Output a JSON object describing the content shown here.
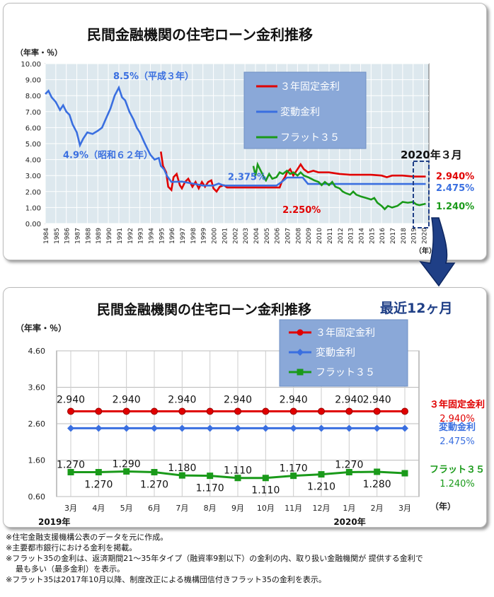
{
  "charts": [
    {
      "title": "民間金融機関の住宅ローン金利推移",
      "ylabel": "（年率・％）",
      "xlabel": "（年）",
      "date_label": "2020年３月",
      "ylim": [
        0,
        10
      ],
      "yticks": [
        "0.00",
        "1.00",
        "2.00",
        "3.00",
        "4.00",
        "5.00",
        "6.00",
        "7.00",
        "8.00",
        "9.00",
        "10.00"
      ],
      "xticks": [
        "1984",
        "1985",
        "1986",
        "1987",
        "1988",
        "1989",
        "1990",
        "1991",
        "1992",
        "1993",
        "1994",
        "1995",
        "1996",
        "1997",
        "1998",
        "1999",
        "2000",
        "2001",
        "2002",
        "2003",
        "2004",
        "2005",
        "2006",
        "2007",
        "2008",
        "2009",
        "2010",
        "2011",
        "2012",
        "2013",
        "2014",
        "2015",
        "2016",
        "2017",
        "2018",
        "2019",
        "2020"
      ],
      "annotations": [
        {
          "text": "8.5%（平成３年）",
          "x": 1991.0,
          "y": 8.5,
          "color": "#3a6fe0"
        },
        {
          "text": "4.9%（昭和６２年）",
          "x": 1987.3,
          "y": 4.9,
          "color": "#3a6fe0"
        },
        {
          "text": "2.375%",
          "x": 2001.5,
          "y": 2.375,
          "color": "#3a6fe0"
        },
        {
          "text": "2.250%",
          "x": 2006.3,
          "y": 2.25,
          "color": "#e00000"
        }
      ],
      "end_labels": [
        "2.940%",
        "2.475%",
        "1.240%"
      ],
      "series": [
        {
          "name": "３年固定金利",
          "color": "#e00000",
          "points": [
            [
              1995.0,
              4.5
            ],
            [
              1995.2,
              3.6
            ],
            [
              1995.5,
              3.2
            ],
            [
              1995.7,
              2.3
            ],
            [
              1996.0,
              2.1
            ],
            [
              1996.2,
              2.9
            ],
            [
              1996.5,
              3.1
            ],
            [
              1996.8,
              2.4
            ],
            [
              1997.0,
              2.2
            ],
            [
              1997.3,
              2.6
            ],
            [
              1997.6,
              2.8
            ],
            [
              1998.0,
              2.3
            ],
            [
              1998.3,
              2.6
            ],
            [
              1998.6,
              2.2
            ],
            [
              1998.9,
              2.6
            ],
            [
              1999.2,
              2.3
            ],
            [
              1999.5,
              2.6
            ],
            [
              1999.8,
              2.7
            ],
            [
              2000.0,
              2.2
            ],
            [
              2000.3,
              2.0
            ],
            [
              2000.6,
              2.3
            ],
            [
              2001.0,
              2.4
            ],
            [
              2001.3,
              2.25
            ],
            [
              2002.0,
              2.25
            ],
            [
              2003.0,
              2.25
            ],
            [
              2004.0,
              2.25
            ],
            [
              2005.0,
              2.25
            ],
            [
              2006.0,
              2.25
            ],
            [
              2006.3,
              2.25
            ],
            [
              2006.5,
              2.6
            ],
            [
              2006.8,
              2.9
            ],
            [
              2007.0,
              3.2
            ],
            [
              2007.3,
              3.4
            ],
            [
              2007.6,
              3.0
            ],
            [
              2008.0,
              3.4
            ],
            [
              2008.3,
              3.7
            ],
            [
              2008.6,
              3.4
            ],
            [
              2009.0,
              3.2
            ],
            [
              2009.5,
              3.3
            ],
            [
              2010.0,
              3.2
            ],
            [
              2011.0,
              3.2
            ],
            [
              2012.0,
              3.1
            ],
            [
              2013.0,
              3.05
            ],
            [
              2014.0,
              3.05
            ],
            [
              2015.0,
              3.05
            ],
            [
              2016.0,
              3.0
            ],
            [
              2016.5,
              2.9
            ],
            [
              2017.0,
              3.0
            ],
            [
              2018.0,
              3.0
            ],
            [
              2019.0,
              2.94
            ],
            [
              2020.2,
              2.94
            ]
          ]
        },
        {
          "name": "変動金利",
          "color": "#3a6fe0",
          "points": [
            [
              1984.0,
              8.1
            ],
            [
              1984.3,
              8.3
            ],
            [
              1984.6,
              7.9
            ],
            [
              1985.0,
              7.6
            ],
            [
              1985.4,
              7.1
            ],
            [
              1985.7,
              7.4
            ],
            [
              1986.0,
              7.0
            ],
            [
              1986.3,
              6.8
            ],
            [
              1986.6,
              6.2
            ],
            [
              1987.0,
              5.7
            ],
            [
              1987.3,
              4.9
            ],
            [
              1987.6,
              5.3
            ],
            [
              1988.0,
              5.7
            ],
            [
              1988.5,
              5.6
            ],
            [
              1989.0,
              5.8
            ],
            [
              1989.4,
              6.0
            ],
            [
              1989.8,
              6.6
            ],
            [
              1990.2,
              7.2
            ],
            [
              1990.6,
              8.0
            ],
            [
              1991.0,
              8.5
            ],
            [
              1991.3,
              7.9
            ],
            [
              1991.6,
              7.7
            ],
            [
              1992.0,
              7.0
            ],
            [
              1992.4,
              6.5
            ],
            [
              1992.7,
              6.0
            ],
            [
              1993.0,
              5.7
            ],
            [
              1993.4,
              5.1
            ],
            [
              1993.7,
              4.7
            ],
            [
              1994.0,
              4.3
            ],
            [
              1994.4,
              4.0
            ],
            [
              1994.8,
              4.1
            ],
            [
              1995.0,
              3.6
            ],
            [
              1995.3,
              3.4
            ],
            [
              1995.6,
              2.95
            ],
            [
              1996.0,
              2.6
            ],
            [
              1997.0,
              2.625
            ],
            [
              1998.0,
              2.5
            ],
            [
              1999.0,
              2.375
            ],
            [
              2000.0,
              2.375
            ],
            [
              2000.5,
              2.5
            ],
            [
              2001.0,
              2.375
            ],
            [
              2002.0,
              2.375
            ],
            [
              2003.0,
              2.375
            ],
            [
              2004.0,
              2.375
            ],
            [
              2005.0,
              2.375
            ],
            [
              2006.0,
              2.375
            ],
            [
              2006.5,
              2.6
            ],
            [
              2007.0,
              2.875
            ],
            [
              2007.5,
              2.875
            ],
            [
              2008.0,
              2.875
            ],
            [
              2008.5,
              2.875
            ],
            [
              2009.0,
              2.475
            ],
            [
              2010.0,
              2.475
            ],
            [
              2012.0,
              2.475
            ],
            [
              2014.0,
              2.475
            ],
            [
              2016.0,
              2.475
            ],
            [
              2018.0,
              2.475
            ],
            [
              2020.2,
              2.475
            ]
          ]
        },
        {
          "name": "フラット３５",
          "color": "#1a9a1a",
          "points": [
            [
              2003.8,
              3.6
            ],
            [
              2004.0,
              3.0
            ],
            [
              2004.2,
              3.7
            ],
            [
              2004.5,
              3.3
            ],
            [
              2004.8,
              2.9
            ],
            [
              2005.0,
              2.7
            ],
            [
              2005.3,
              3.1
            ],
            [
              2005.6,
              2.8
            ],
            [
              2006.0,
              2.9
            ],
            [
              2006.3,
              3.2
            ],
            [
              2006.6,
              3.1
            ],
            [
              2007.0,
              3.3
            ],
            [
              2007.3,
              3.1
            ],
            [
              2007.6,
              3.2
            ],
            [
              2008.0,
              3.0
            ],
            [
              2008.3,
              3.2
            ],
            [
              2008.6,
              3.0
            ],
            [
              2009.0,
              2.9
            ],
            [
              2009.3,
              2.8
            ],
            [
              2009.6,
              2.7
            ],
            [
              2010.0,
              2.6
            ],
            [
              2010.3,
              2.4
            ],
            [
              2010.6,
              2.6
            ],
            [
              2011.0,
              2.4
            ],
            [
              2011.3,
              2.6
            ],
            [
              2011.6,
              2.3
            ],
            [
              2012.0,
              2.2
            ],
            [
              2012.3,
              2.0
            ],
            [
              2012.6,
              1.9
            ],
            [
              2013.0,
              1.8
            ],
            [
              2013.3,
              2.0
            ],
            [
              2013.6,
              1.8
            ],
            [
              2014.0,
              1.7
            ],
            [
              2014.5,
              1.6
            ],
            [
              2015.0,
              1.5
            ],
            [
              2015.3,
              1.6
            ],
            [
              2015.6,
              1.3
            ],
            [
              2016.0,
              1.1
            ],
            [
              2016.3,
              0.9
            ],
            [
              2016.6,
              1.1
            ],
            [
              2017.0,
              1.0
            ],
            [
              2017.5,
              1.1
            ],
            [
              2018.0,
              1.35
            ],
            [
              2018.5,
              1.3
            ],
            [
              2019.0,
              1.35
            ],
            [
              2019.3,
              1.2
            ],
            [
              2019.6,
              1.15
            ],
            [
              2020.2,
              1.24
            ]
          ]
        }
      ]
    },
    {
      "title": "民間金融機関の住宅ローン金利推移",
      "subtitle": "最近12ヶ月",
      "ylabel": "（年率・％）",
      "xlabel": "（年）",
      "ylim": [
        0.6,
        4.6
      ],
      "yticks": [
        "0.60",
        "1.60",
        "2.60",
        "3.60",
        "4.60"
      ],
      "categories": [
        "3月",
        "4月",
        "5月",
        "6月",
        "7月",
        "8月",
        "9月",
        "10月",
        "11月",
        "12月",
        "1月",
        "2月",
        "3月"
      ],
      "year_labels": [
        {
          "text": "2019年",
          "index": 0
        },
        {
          "text": "2020年",
          "index": 10
        }
      ],
      "series": [
        {
          "name": "３年固定金利",
          "color": "#e00000",
          "marker": "circle",
          "end_label": "３年固定金利",
          "end_value": "2.940%",
          "values": [
            2.94,
            2.94,
            2.94,
            2.94,
            2.94,
            2.94,
            2.94,
            2.94,
            2.94,
            2.94,
            2.94,
            2.94,
            2.94
          ],
          "labels": [
            "2.940",
            "",
            "2.940",
            "",
            "2.940",
            "",
            "2.940",
            "",
            "2.940",
            "",
            "2.940",
            "2.940",
            ""
          ]
        },
        {
          "name": "変動金利",
          "color": "#3a6fe0",
          "marker": "diamond",
          "end_label": "変動金利",
          "end_value": "2.475%",
          "values": [
            2.475,
            2.475,
            2.475,
            2.475,
            2.475,
            2.475,
            2.475,
            2.475,
            2.475,
            2.475,
            2.475,
            2.475,
            2.475
          ],
          "labels": []
        },
        {
          "name": "フラット３５",
          "color": "#1a9a1a",
          "marker": "square",
          "end_label": "フラット３５",
          "end_value": "1.240%",
          "values": [
            1.27,
            1.27,
            1.29,
            1.27,
            1.18,
            1.17,
            1.11,
            1.11,
            1.17,
            1.21,
            1.27,
            1.28,
            1.24
          ],
          "labels": [
            "1.270",
            "1.270",
            "1.290",
            "1.270",
            "1.180",
            "1.170",
            "1.110",
            "1.110",
            "1.170",
            "1.210",
            "1.270",
            "1.280",
            ""
          ],
          "label_pos": [
            "above",
            "below",
            "above",
            "below",
            "above",
            "below",
            "above",
            "below",
            "above",
            "below",
            "above",
            "below",
            ""
          ]
        }
      ]
    }
  ],
  "footnotes": [
    "※住宅金融支援機構公表のデータを元に作成。",
    "※主要都市銀行における金利を掲載。",
    "※フラット35の金利は、返済期間21～35年タイプ（融資率9割以下）の金利の内、取り扱い金融機関が 提供する金利で",
    "最も多い（最多金利）を表示。",
    "※フラット35は2017年10月以降、制度改正による機構団信付きフラット35の金利を表示。"
  ]
}
